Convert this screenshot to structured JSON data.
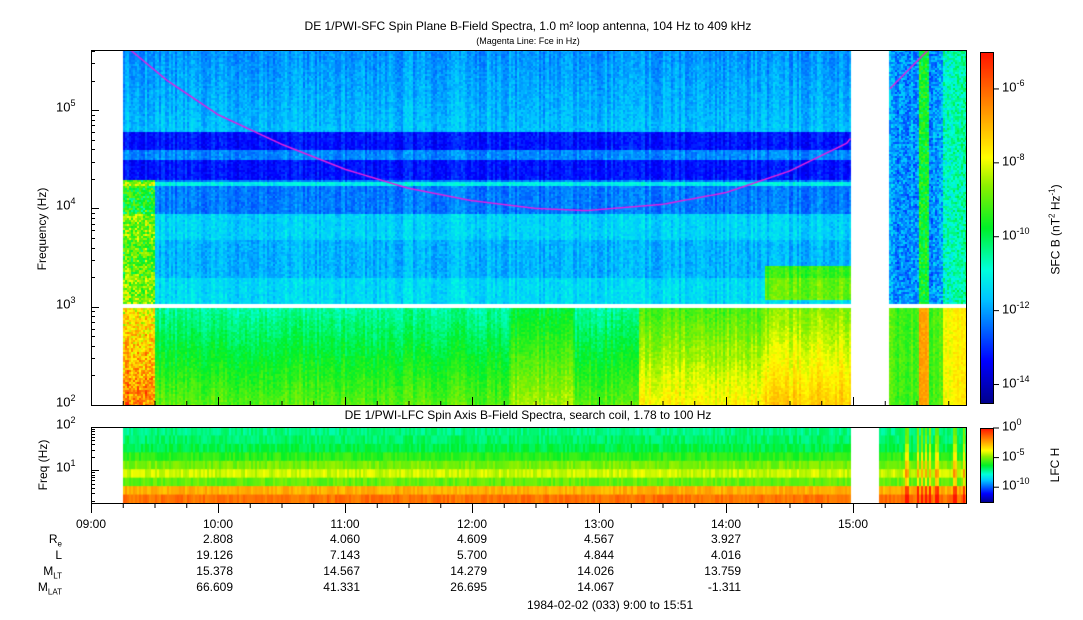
{
  "chart_data": [
    {
      "type": "heatmap",
      "title": "DE 1/PWI-SFC  Spin Plane B-Field Spectra, 1.0 m² loop antenna, 104 Hz to 409 kHz",
      "subtitle": "(Magenta Line: Fce in Hz)",
      "ylabel": "Frequency (Hz)",
      "yscale": "log",
      "ylim": [
        100,
        409000
      ],
      "yticks": [
        {
          "value": 100,
          "base": "10",
          "exp": "2"
        },
        {
          "value": 1000,
          "base": "10",
          "exp": "3"
        },
        {
          "value": 10000,
          "base": "10",
          "exp": "4"
        },
        {
          "value": 100000,
          "base": "10",
          "exp": "5"
        }
      ],
      "xlim_hours": [
        9.0,
        15.85
      ],
      "data_start_hour": 9.25,
      "data_gaps_hours": [
        [
          14.98,
          15.28
        ]
      ],
      "freq_gap_hz": [
        1000,
        1100
      ],
      "colorbar": {
        "label": "SFC B (nT",
        "label_sup1": "2",
        "label_mid": " Hz",
        "label_sup2": "-1",
        "label_end": ")",
        "log_range": [
          -14.5,
          -5
        ],
        "ticks": [
          {
            "base": "10",
            "exp": "-6",
            "log": -6
          },
          {
            "base": "10",
            "exp": "-8",
            "log": -8
          },
          {
            "base": "10",
            "exp": "-10",
            "log": -10
          },
          {
            "base": "10",
            "exp": "-12",
            "log": -12
          },
          {
            "base": "10",
            "exp": "-14",
            "log": -14
          }
        ]
      },
      "fce_line": {
        "color": "#e020e0",
        "hours": [
          9.3,
          9.6,
          10.0,
          10.5,
          11.0,
          11.5,
          12.0,
          12.5,
          12.9,
          13.5,
          14.0,
          14.5,
          14.95,
          15.28,
          15.6
        ],
        "hz": [
          420000,
          200000,
          90000,
          45000,
          25000,
          16000,
          12000,
          10000,
          9500,
          11000,
          14500,
          24000,
          46000,
          160000,
          420000
        ]
      }
    },
    {
      "type": "heatmap",
      "title": "DE 1/PWI-LFC  Spin Axis B-Field Spectra, search coil, 1.78 to 100 Hz",
      "ylabel": "Freq (Hz)",
      "yscale": "log",
      "ylim": [
        1.78,
        100
      ],
      "yticks": [
        {
          "value": 10,
          "base": "10",
          "exp": "1"
        },
        {
          "value": 100,
          "base": "10",
          "exp": "2"
        }
      ],
      "data_start_hour": 9.25,
      "data_gaps_hours": [
        [
          14.98,
          15.2
        ]
      ],
      "colorbar": {
        "label": "LFC H",
        "log_range": [
          -12.5,
          0
        ],
        "ticks": [
          {
            "base": "10",
            "exp": "0",
            "log": 0
          },
          {
            "base": "10",
            "exp": "-5",
            "log": -5
          },
          {
            "base": "10",
            "exp": "-10",
            "log": -10
          }
        ]
      }
    }
  ],
  "time_axis": {
    "ticks": [
      {
        "h": 9,
        "label": "09:00"
      },
      {
        "h": 10,
        "label": "10:00"
      },
      {
        "h": 11,
        "label": "11:00"
      },
      {
        "h": 12,
        "label": "12:00"
      },
      {
        "h": 13,
        "label": "13:00"
      },
      {
        "h": 14,
        "label": "14:00"
      },
      {
        "h": 15,
        "label": "15:00"
      }
    ]
  },
  "ephemeris": {
    "rows": [
      {
        "label": "R",
        "sub": "e",
        "values": [
          "2.808",
          "4.060",
          "4.609",
          "4.567",
          "3.927"
        ]
      },
      {
        "label": "L",
        "sub": "",
        "values": [
          "19.126",
          "7.143",
          "5.700",
          "4.844",
          "4.016"
        ]
      },
      {
        "label": "M",
        "sub": "LT",
        "values": [
          "15.378",
          "14.567",
          "14.279",
          "14.026",
          "13.759"
        ]
      },
      {
        "label": "M",
        "sub": "LAT",
        "values": [
          "66.609",
          "41.331",
          "26.695",
          "14.067",
          "-1.311"
        ]
      }
    ],
    "footer": "1984-02-02 (033) 9:00 to 15:51"
  }
}
